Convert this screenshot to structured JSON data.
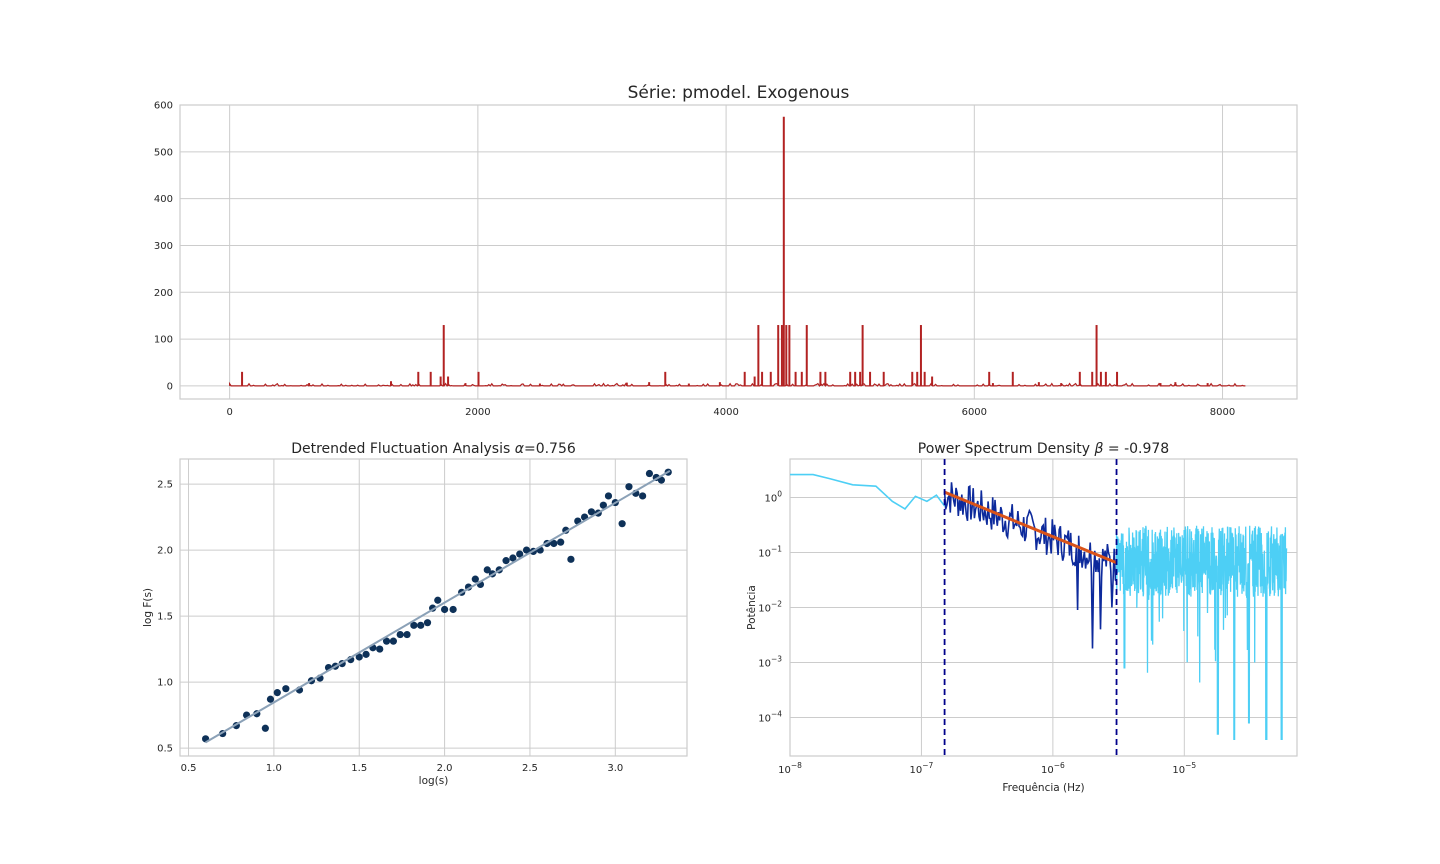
{
  "chart_data": [
    {
      "type": "line",
      "title": "Série: pmodel. Exogenous",
      "xlabel": "",
      "ylabel": "",
      "xlim": [
        -400,
        8600
      ],
      "ylim": [
        -28,
        600
      ],
      "xticks": [
        0,
        2000,
        4000,
        6000,
        8000
      ],
      "yticks": [
        0,
        100,
        200,
        300,
        400,
        500,
        600
      ],
      "grid": true,
      "color": "#b22222",
      "n_points": 8192,
      "baseline": 0,
      "spikes": [
        {
          "x": 100,
          "y": 30
        },
        {
          "x": 640,
          "y": 6
        },
        {
          "x": 1300,
          "y": 10
        },
        {
          "x": 1520,
          "y": 30
        },
        {
          "x": 1620,
          "y": 30
        },
        {
          "x": 1700,
          "y": 20
        },
        {
          "x": 1725,
          "y": 130
        },
        {
          "x": 1760,
          "y": 20
        },
        {
          "x": 1900,
          "y": 6
        },
        {
          "x": 2005,
          "y": 30
        },
        {
          "x": 2500,
          "y": 5
        },
        {
          "x": 3200,
          "y": 7
        },
        {
          "x": 3380,
          "y": 8
        },
        {
          "x": 3510,
          "y": 30
        },
        {
          "x": 3700,
          "y": 5
        },
        {
          "x": 3950,
          "y": 8
        },
        {
          "x": 4150,
          "y": 30
        },
        {
          "x": 4230,
          "y": 20
        },
        {
          "x": 4260,
          "y": 130
        },
        {
          "x": 4290,
          "y": 30
        },
        {
          "x": 4360,
          "y": 30
        },
        {
          "x": 4420,
          "y": 130
        },
        {
          "x": 4450,
          "y": 130
        },
        {
          "x": 4465,
          "y": 575
        },
        {
          "x": 4485,
          "y": 130
        },
        {
          "x": 4510,
          "y": 130
        },
        {
          "x": 4560,
          "y": 30
        },
        {
          "x": 4610,
          "y": 30
        },
        {
          "x": 4650,
          "y": 130
        },
        {
          "x": 4760,
          "y": 30
        },
        {
          "x": 4800,
          "y": 30
        },
        {
          "x": 5000,
          "y": 30
        },
        {
          "x": 5040,
          "y": 30
        },
        {
          "x": 5080,
          "y": 30
        },
        {
          "x": 5100,
          "y": 130
        },
        {
          "x": 5160,
          "y": 30
        },
        {
          "x": 5270,
          "y": 30
        },
        {
          "x": 5500,
          "y": 30
        },
        {
          "x": 5540,
          "y": 30
        },
        {
          "x": 5570,
          "y": 130
        },
        {
          "x": 5600,
          "y": 30
        },
        {
          "x": 5660,
          "y": 20
        },
        {
          "x": 6120,
          "y": 30
        },
        {
          "x": 6150,
          "y": 6
        },
        {
          "x": 6310,
          "y": 30
        },
        {
          "x": 6520,
          "y": 8
        },
        {
          "x": 6700,
          "y": 6
        },
        {
          "x": 6850,
          "y": 30
        },
        {
          "x": 6950,
          "y": 30
        },
        {
          "x": 6985,
          "y": 130
        },
        {
          "x": 7020,
          "y": 30
        },
        {
          "x": 7060,
          "y": 30
        },
        {
          "x": 7150,
          "y": 30
        },
        {
          "x": 7500,
          "y": 6
        },
        {
          "x": 7620,
          "y": 8
        },
        {
          "x": 7880,
          "y": 6
        }
      ]
    },
    {
      "type": "scatter",
      "title": "Detrended Fluctuation Analysis",
      "title_symbol": "α",
      "title_value": "=0.756",
      "xlabel": "log(s)",
      "ylabel": "log F(s)",
      "xlim": [
        0.45,
        3.42
      ],
      "ylim": [
        0.44,
        2.69
      ],
      "xticks": [
        0.5,
        1.0,
        1.5,
        2.0,
        2.5,
        3.0
      ],
      "yticks": [
        0.5,
        1.0,
        1.5,
        2.0,
        2.5
      ],
      "grid": true,
      "point_color": "#0e3158",
      "fit_color": "#8ba1b7",
      "fit": {
        "slope": 0.756,
        "intercept": 0.09,
        "x_range": [
          0.6,
          3.32
        ]
      },
      "points": [
        [
          0.6,
          0.57
        ],
        [
          0.7,
          0.61
        ],
        [
          0.78,
          0.67
        ],
        [
          0.84,
          0.75
        ],
        [
          0.9,
          0.76
        ],
        [
          0.95,
          0.65
        ],
        [
          0.98,
          0.87
        ],
        [
          1.02,
          0.92
        ],
        [
          1.07,
          0.95
        ],
        [
          1.15,
          0.94
        ],
        [
          1.22,
          1.01
        ],
        [
          1.27,
          1.03
        ],
        [
          1.32,
          1.11
        ],
        [
          1.36,
          1.12
        ],
        [
          1.4,
          1.14
        ],
        [
          1.45,
          1.17
        ],
        [
          1.5,
          1.19
        ],
        [
          1.54,
          1.21
        ],
        [
          1.58,
          1.26
        ],
        [
          1.62,
          1.25
        ],
        [
          1.66,
          1.31
        ],
        [
          1.7,
          1.31
        ],
        [
          1.74,
          1.36
        ],
        [
          1.78,
          1.36
        ],
        [
          1.82,
          1.43
        ],
        [
          1.86,
          1.43
        ],
        [
          1.9,
          1.45
        ],
        [
          1.93,
          1.56
        ],
        [
          1.96,
          1.62
        ],
        [
          2.0,
          1.55
        ],
        [
          2.05,
          1.55
        ],
        [
          2.1,
          1.68
        ],
        [
          2.14,
          1.72
        ],
        [
          2.18,
          1.78
        ],
        [
          2.21,
          1.74
        ],
        [
          2.25,
          1.85
        ],
        [
          2.28,
          1.82
        ],
        [
          2.32,
          1.85
        ],
        [
          2.36,
          1.92
        ],
        [
          2.4,
          1.94
        ],
        [
          2.44,
          1.97
        ],
        [
          2.48,
          2.0
        ],
        [
          2.52,
          1.99
        ],
        [
          2.56,
          2.0
        ],
        [
          2.6,
          2.05
        ],
        [
          2.64,
          2.05
        ],
        [
          2.68,
          2.06
        ],
        [
          2.71,
          2.15
        ],
        [
          2.74,
          1.93
        ],
        [
          2.78,
          2.22
        ],
        [
          2.82,
          2.25
        ],
        [
          2.86,
          2.29
        ],
        [
          2.9,
          2.28
        ],
        [
          2.93,
          2.34
        ],
        [
          2.96,
          2.41
        ],
        [
          3.0,
          2.36
        ],
        [
          3.04,
          2.2
        ],
        [
          3.08,
          2.48
        ],
        [
          3.12,
          2.43
        ],
        [
          3.16,
          2.41
        ],
        [
          3.2,
          2.58
        ],
        [
          3.24,
          2.55
        ],
        [
          3.27,
          2.53
        ],
        [
          3.31,
          2.59
        ]
      ]
    },
    {
      "type": "line",
      "title": "Power Spectrum Density",
      "title_symbol": "β",
      "title_value": "= -0.978",
      "xlabel": "Frequência (Hz)",
      "ylabel": "Potência",
      "xscale": "log",
      "yscale": "log",
      "xlim": [
        1e-08,
        7.2e-05
      ],
      "ylim": [
        2e-05,
        5
      ],
      "xticks": [
        {
          "v": 1e-08,
          "m": "10",
          "e": "−8"
        },
        {
          "v": 1e-07,
          "m": "10",
          "e": "−7"
        },
        {
          "v": 1e-06,
          "m": "10",
          "e": "−6"
        },
        {
          "v": 1e-05,
          "m": "10",
          "e": "−5"
        }
      ],
      "yticks": [
        {
          "v": 1,
          "m": "10",
          "e": "0"
        },
        {
          "v": 0.1,
          "m": "10",
          "e": "−1"
        },
        {
          "v": 0.01,
          "m": "10",
          "e": "−2"
        },
        {
          "v": 0.001,
          "m": "10",
          "e": "−3"
        },
        {
          "v": 0.0001,
          "m": "10",
          "e": "−4"
        }
      ],
      "grid": true,
      "vlines": [
        1.5e-07,
        3.05e-06
      ],
      "vline_color": "#00008b",
      "fit": {
        "slope": -0.978,
        "x_range": [
          1.5e-07,
          3.05e-06
        ],
        "y_range": [
          1.25,
          0.065
        ],
        "color": "#d95319"
      },
      "series": [
        {
          "color": "#4dcff5",
          "points": [
            [
              1e-08,
              2.6
            ],
            [
              1.5e-08,
              2.6
            ],
            [
              2e-08,
              2.2
            ],
            [
              3e-08,
              1.7
            ],
            [
              4.5e-08,
              1.6
            ],
            [
              6e-08,
              0.85
            ],
            [
              7.5e-08,
              0.62
            ],
            [
              9e-08,
              1.05
            ],
            [
              1.1e-07,
              0.85
            ],
            [
              1.3e-07,
              1.1
            ],
            [
              1.5e-07,
              0.7
            ]
          ],
          "seed": 0
        },
        {
          "color": "#0d2a9c",
          "x_range": [
            1.5e-07,
            3.05e-06
          ],
          "n": 150,
          "amp": 1.0,
          "seed": 7,
          "dips": [
            [
              2e-06,
              0.0018
            ],
            [
              1.55e-06,
              0.009
            ],
            [
              2.3e-06,
              0.004
            ],
            [
              2.8e-06,
              0.01
            ]
          ]
        },
        {
          "color": "#4dcff5",
          "x_range": [
            3.05e-06,
            6e-05
          ],
          "n": 720,
          "level": 0.07,
          "seed": 11,
          "dips": [
            [
              3.5e-06,
              0.0008
            ],
            [
              1.8e-05,
              5e-05
            ],
            [
              2.4e-05,
              4e-05
            ],
            [
              3.1e-05,
              8e-05
            ],
            [
              4.2e-05,
              4e-05
            ],
            [
              5.5e-05,
              4e-05
            ]
          ]
        }
      ]
    }
  ]
}
